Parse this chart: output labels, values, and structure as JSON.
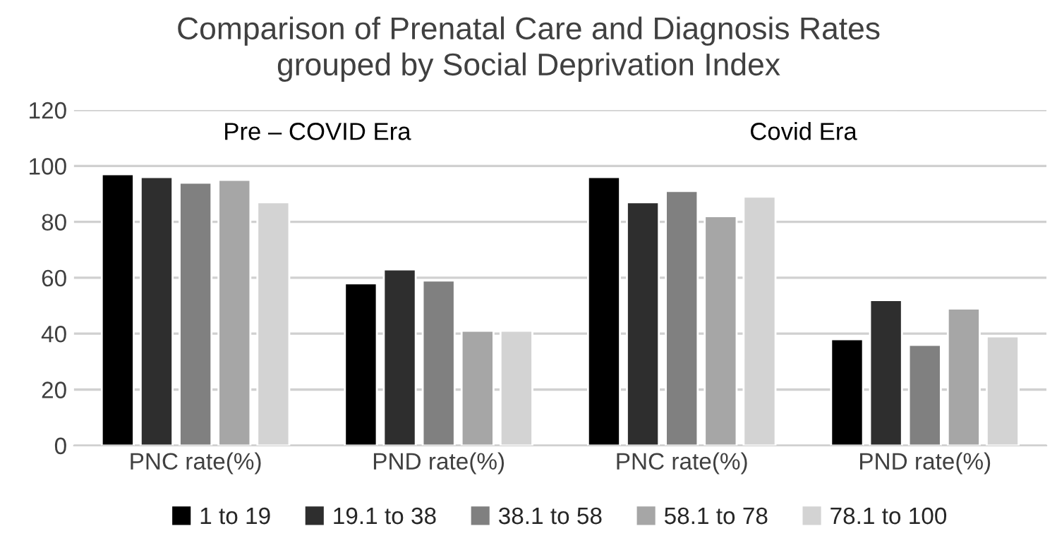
{
  "chart_data": {
    "type": "bar",
    "title": "Comparison of Prenatal Care and Diagnosis Rates\ngrouped by Social Deprivation Index",
    "categories": [
      "PNC rate(%)",
      "PND rate(%)",
      "PNC rate(%)",
      "PND rate(%)"
    ],
    "series": [
      {
        "name": "1 to 19",
        "color": "#000000",
        "values": [
          97,
          58,
          96,
          38
        ]
      },
      {
        "name": "19.1 to 38",
        "color": "#2e2e2e",
        "values": [
          96,
          63,
          87,
          52
        ]
      },
      {
        "name": "38.1 to 58",
        "color": "#808080",
        "values": [
          94,
          59,
          91,
          36
        ]
      },
      {
        "name": "58.1 to 78",
        "color": "#a6a6a6",
        "values": [
          95,
          41,
          82,
          49
        ]
      },
      {
        "name": "78.1 to 100",
        "color": "#d3d3d3",
        "values": [
          87,
          41,
          89,
          39
        ]
      }
    ],
    "annotations": [
      "Pre – COVID Era",
      "Covid Era"
    ],
    "ylim": [
      0,
      120
    ],
    "yticks": [
      0,
      20,
      40,
      60,
      80,
      100,
      120
    ],
    "grid": "y",
    "legend": "bottom"
  }
}
